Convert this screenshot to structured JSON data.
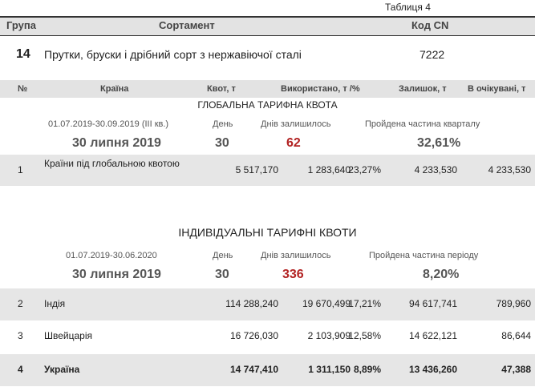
{
  "table_label": "Таблиця 4",
  "header": {
    "group": "Група",
    "assortment": "Сортамент",
    "cn_code": "Код CN"
  },
  "product": {
    "group": "14",
    "name": "Прутки, бруски і дрібний сорт з нержавіючої сталі",
    "cn_code": "7222"
  },
  "columns": [
    "№",
    "Країна",
    "Квот, т",
    "Використано, т /%",
    "Залишок, т",
    "В очікувані, т"
  ],
  "global": {
    "title": "ГЛОБАЛЬНА ТАРИФНА КВОТА",
    "period": "01.07.2019-30.09.2019  (III кв.)",
    "day_label": "День",
    "days_left_label": "Днів залишилось",
    "progress_label": "Пройдена частина кварталу",
    "date": "30 липня 2019",
    "day": "30",
    "days_left": "62",
    "progress": "32,61%",
    "rows": [
      [
        "1",
        "Країни під глобальною квотою",
        "5 517,170",
        "1 283,640",
        "23,27%",
        "4 233,530",
        "4 233,530"
      ]
    ]
  },
  "individual": {
    "title": "ІНДИВІДУАЛЬНІ ТАРИФНІ КВОТИ",
    "period": "01.07.2019-30.06.2020",
    "day_label": "День",
    "days_left_label": "Днів залишилось",
    "progress_label": "Пройдена частина періоду",
    "date": "30 липня 2019",
    "day": "30",
    "days_left": "336",
    "progress": "8,20%",
    "rows": [
      [
        "2",
        "Індія",
        "114 288,240",
        "19 670,499",
        "17,21%",
        "94 617,741",
        "789,960"
      ],
      [
        "3",
        "Швейцарія",
        "16 726,030",
        "2 103,909",
        "12,58%",
        "14 622,121",
        "86,644"
      ],
      [
        "4",
        "Україна",
        "14 747,410",
        "1 311,150",
        "8,89%",
        "13 436,260",
        "47,388"
      ]
    ]
  }
}
